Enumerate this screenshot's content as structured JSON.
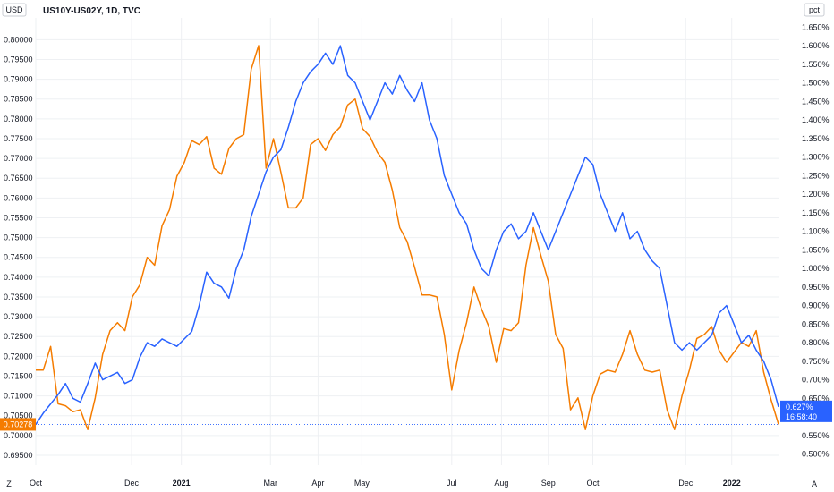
{
  "chart_data": {
    "type": "line",
    "title": "US10Y-US02Y, 1D, TVC",
    "left_unit": "USD",
    "right_unit": "pct",
    "x_ticks": [
      "Oct",
      "Dec",
      "2021",
      "Mar",
      "Apr",
      "May",
      "Jul",
      "Aug",
      "Sep",
      "Oct",
      "Dec",
      "2022"
    ],
    "x_tick_bold": [
      "2021",
      "2022"
    ],
    "x_range": [
      0,
      100
    ],
    "x_tick_pos": [
      0,
      12.9,
      19.6,
      31.6,
      38.0,
      43.9,
      56.0,
      62.7,
      69.0,
      75.0,
      87.5,
      93.7
    ],
    "left_axis": {
      "ylim": [
        0.6925,
        0.8055
      ],
      "ticks": [
        "0.69500",
        "0.70000",
        "0.70500",
        "0.71000",
        "0.71500",
        "0.72000",
        "0.72500",
        "0.73000",
        "0.73500",
        "0.74000",
        "0.74500",
        "0.75000",
        "0.75500",
        "0.76000",
        "0.76500",
        "0.77000",
        "0.77500",
        "0.78000",
        "0.78500",
        "0.79000",
        "0.79500",
        "0.80000"
      ]
    },
    "right_axis": {
      "ylim": [
        0.47,
        1.675
      ],
      "ticks": [
        "0.500%",
        "0.550%",
        "0.600%",
        "0.650%",
        "0.700%",
        "0.750%",
        "0.800%",
        "0.850%",
        "0.900%",
        "0.950%",
        "1.000%",
        "1.050%",
        "1.100%",
        "1.150%",
        "1.200%",
        "1.250%",
        "1.300%",
        "1.350%",
        "1.400%",
        "1.450%",
        "1.500%",
        "1.550%",
        "1.600%",
        "1.650%"
      ]
    },
    "grid": true,
    "series": [
      {
        "color": "#f57c00",
        "axis": "left",
        "last_value_label": "0.70278",
        "x": [
          0,
          1,
          2,
          3,
          4,
          5,
          6,
          7,
          8,
          9,
          10,
          11,
          12,
          13,
          14,
          15,
          16,
          17,
          18,
          19,
          20,
          21,
          22,
          23,
          24,
          25,
          26,
          27,
          28,
          29,
          30,
          31,
          32,
          33,
          34,
          35,
          36,
          37,
          38,
          39,
          40,
          41,
          42,
          43,
          44,
          45,
          46,
          47,
          48,
          49,
          50,
          51,
          52,
          53,
          54,
          55,
          56,
          57,
          58,
          59,
          60,
          61,
          62,
          63,
          64,
          65,
          66,
          67,
          68,
          69,
          70,
          71,
          72,
          73,
          74,
          75,
          76,
          77,
          78,
          79,
          80,
          81,
          82,
          83,
          84,
          85,
          86,
          87,
          88,
          89,
          90,
          91,
          92,
          93,
          94,
          95,
          96,
          97,
          98,
          99,
          100
        ],
        "y": [
          0.7165,
          0.7165,
          0.7225,
          0.708,
          0.7075,
          0.706,
          0.7065,
          0.7015,
          0.7095,
          0.7205,
          0.7265,
          0.7285,
          0.7265,
          0.735,
          0.738,
          0.745,
          0.743,
          0.753,
          0.757,
          0.7655,
          0.769,
          0.7745,
          0.7735,
          0.7755,
          0.7675,
          0.766,
          0.7725,
          0.775,
          0.776,
          0.7925,
          0.7985,
          0.7675,
          0.775,
          0.7665,
          0.7575,
          0.7575,
          0.76,
          0.7735,
          0.775,
          0.772,
          0.776,
          0.778,
          0.7835,
          0.785,
          0.7775,
          0.7755,
          0.7715,
          0.769,
          0.762,
          0.7525,
          0.749,
          0.7425,
          0.7355,
          0.7355,
          0.735,
          0.7255,
          0.7115,
          0.7215,
          0.7285,
          0.7375,
          0.732,
          0.7275,
          0.7185,
          0.727,
          0.7265,
          0.7285,
          0.743,
          0.7525,
          0.7455,
          0.739,
          0.7255,
          0.722,
          0.7065,
          0.7095,
          0.7015,
          0.71,
          0.7155,
          0.7165,
          0.716,
          0.7205,
          0.7265,
          0.7205,
          0.7165,
          0.716,
          0.7165,
          0.7065,
          0.7015,
          0.71,
          0.7165,
          0.7245,
          0.7255,
          0.7275,
          0.7215,
          0.7185,
          0.721,
          0.7235,
          0.7225,
          0.7265,
          0.716,
          0.709,
          0.7028
        ],
        "x_dense_note": ""
      },
      {
        "color": "#2962ff",
        "axis": "right",
        "last_value_label": "0.627%",
        "countdown": "16:58:40",
        "x": [
          0,
          1,
          2,
          3,
          4,
          5,
          6,
          7,
          8,
          9,
          10,
          11,
          12,
          13,
          14,
          15,
          16,
          17,
          18,
          19,
          20,
          21,
          22,
          23,
          24,
          25,
          26,
          27,
          28,
          29,
          30,
          31,
          32,
          33,
          34,
          35,
          36,
          37,
          38,
          39,
          40,
          41,
          42,
          43,
          44,
          45,
          46,
          47,
          48,
          49,
          50,
          51,
          52,
          53,
          54,
          55,
          56,
          57,
          58,
          59,
          60,
          61,
          62,
          63,
          64,
          65,
          66,
          67,
          68,
          69,
          70,
          71,
          72,
          73,
          74,
          75,
          76,
          77,
          78,
          79,
          80,
          81,
          82,
          83,
          84,
          85,
          86,
          87,
          88,
          89,
          90,
          91,
          92,
          93,
          94,
          95,
          96,
          97,
          98,
          99,
          100
        ],
        "y": [
          0.58,
          0.61,
          0.635,
          0.66,
          0.69,
          0.65,
          0.64,
          0.69,
          0.745,
          0.7,
          0.71,
          0.72,
          0.69,
          0.7,
          0.76,
          0.8,
          0.79,
          0.81,
          0.8,
          0.79,
          0.81,
          0.83,
          0.9,
          0.99,
          0.96,
          0.95,
          0.92,
          1.0,
          1.05,
          1.14,
          1.2,
          1.26,
          1.3,
          1.32,
          1.38,
          1.45,
          1.5,
          1.53,
          1.55,
          1.58,
          1.55,
          1.6,
          1.52,
          1.5,
          1.45,
          1.4,
          1.45,
          1.5,
          1.47,
          1.52,
          1.48,
          1.45,
          1.5,
          1.4,
          1.35,
          1.25,
          1.2,
          1.15,
          1.12,
          1.05,
          1.0,
          0.98,
          1.05,
          1.1,
          1.12,
          1.08,
          1.1,
          1.15,
          1.1,
          1.05,
          1.1,
          1.15,
          1.2,
          1.25,
          1.3,
          1.28,
          1.2,
          1.15,
          1.1,
          1.15,
          1.08,
          1.1,
          1.05,
          1.02,
          1.0,
          0.9,
          0.8,
          0.78,
          0.8,
          0.78,
          0.8,
          0.82,
          0.88,
          0.9,
          0.85,
          0.8,
          0.82,
          0.78,
          0.75,
          0.7,
          0.627
        ]
      }
    ],
    "crosshair_value": 0.7028
  },
  "ui": {
    "corner_left": "Z",
    "corner_right": "A"
  }
}
